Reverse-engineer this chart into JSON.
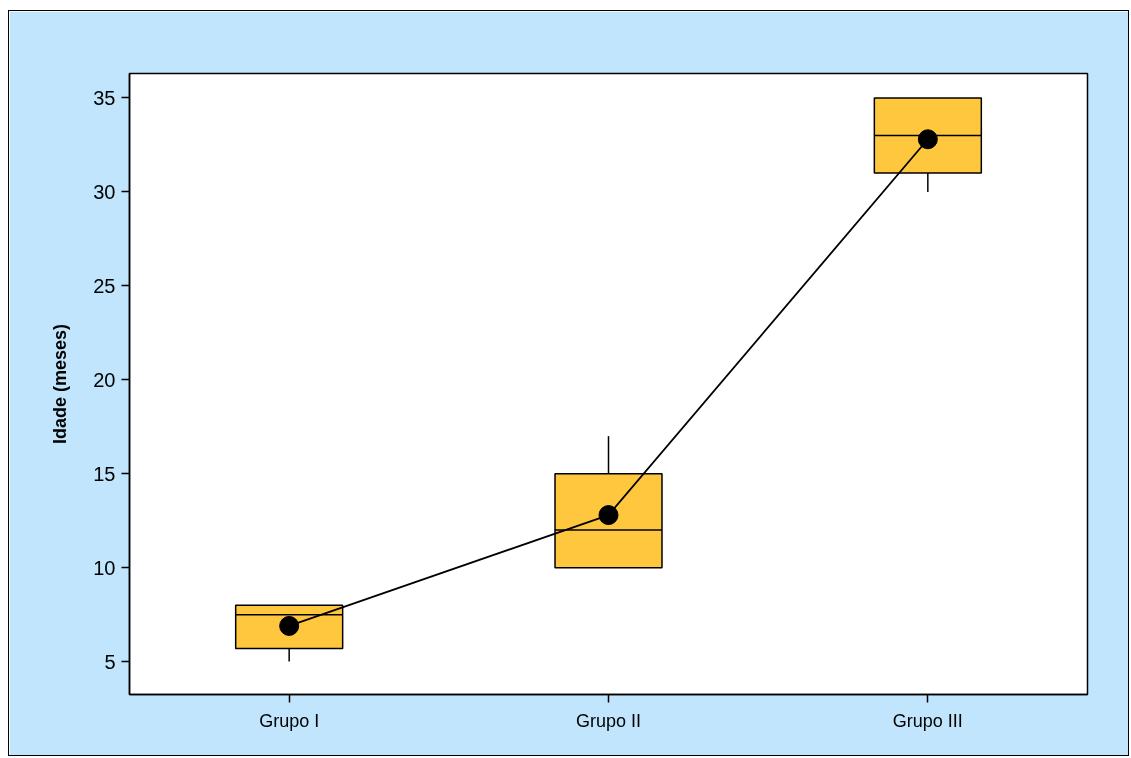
{
  "chart_data": {
    "type": "box",
    "ylabel": "Idade (meses)",
    "categories": [
      "Grupo I",
      "Grupo II",
      "Grupo III"
    ],
    "ylim": [
      3.25,
      36.3
    ],
    "yticks": [
      5,
      10,
      15,
      20,
      25,
      30,
      35
    ],
    "series": [
      {
        "color": "#ffc73e",
        "boxes": [
          {
            "low": 5,
            "q1": 5.7,
            "median": 7.5,
            "q3": 8,
            "high": 8
          },
          {
            "low": 10,
            "q1": 10,
            "median": 12,
            "q3": 15,
            "high": 17
          },
          {
            "low": 30,
            "q1": 31,
            "median": 33,
            "q3": 35,
            "high": 35
          }
        ]
      },
      {
        "type": "line",
        "color": "#000000",
        "x": [
          "Grupo I",
          "Grupo II",
          "Grupo III"
        ],
        "values": [
          6.9,
          12.8,
          32.8
        ],
        "marker": "circle"
      }
    ]
  }
}
